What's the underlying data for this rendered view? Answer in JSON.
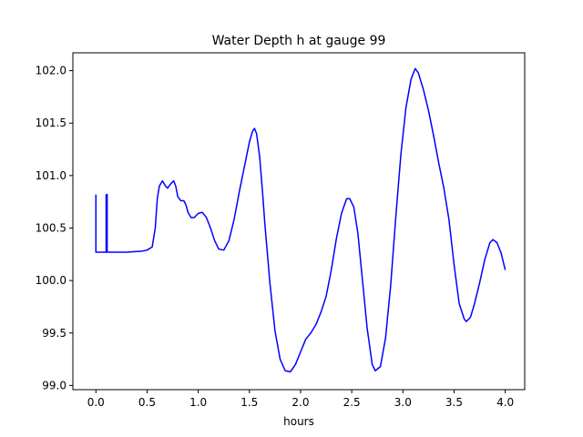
{
  "chart_data": {
    "type": "line",
    "title": "Water Depth h at gauge 99",
    "xlabel": "hours",
    "ylabel": "",
    "xlim": [
      -0.225,
      4.19
    ],
    "ylim": [
      98.96,
      102.17
    ],
    "grid": false,
    "legend": "none",
    "x_ticks": [
      0.0,
      0.5,
      1.0,
      1.5,
      2.0,
      2.5,
      3.0,
      3.5,
      4.0
    ],
    "x_tick_labels": [
      "0.0",
      "0.5",
      "1.0",
      "1.5",
      "2.0",
      "2.5",
      "3.0",
      "3.5",
      "4.0"
    ],
    "y_ticks": [
      99.0,
      99.5,
      100.0,
      100.5,
      101.0,
      101.5,
      102.0
    ],
    "y_tick_labels": [
      "99.0",
      "99.5",
      "100.0",
      "100.5",
      "101.0",
      "101.5",
      "102.0"
    ],
    "series": [
      {
        "color": "#0000ff",
        "x": [
          0.0,
          0.0,
          0.0,
          0.005,
          0.1,
          0.1,
          0.1,
          0.11,
          0.11,
          0.11,
          0.12,
          0.3,
          0.45,
          0.5,
          0.55,
          0.58,
          0.6,
          0.62,
          0.65,
          0.68,
          0.7,
          0.73,
          0.76,
          0.78,
          0.8,
          0.83,
          0.86,
          0.88,
          0.9,
          0.93,
          0.96,
          1.0,
          1.04,
          1.08,
          1.12,
          1.16,
          1.2,
          1.25,
          1.3,
          1.35,
          1.4,
          1.45,
          1.5,
          1.53,
          1.55,
          1.57,
          1.6,
          1.63,
          1.65,
          1.7,
          1.75,
          1.8,
          1.85,
          1.9,
          1.95,
          2.0,
          2.05,
          2.1,
          2.15,
          2.2,
          2.25,
          2.3,
          2.35,
          2.4,
          2.45,
          2.48,
          2.52,
          2.56,
          2.6,
          2.65,
          2.7,
          2.73,
          2.78,
          2.83,
          2.88,
          2.93,
          2.98,
          3.03,
          3.08,
          3.12,
          3.15,
          3.2,
          3.25,
          3.3,
          3.35,
          3.4,
          3.45,
          3.5,
          3.55,
          3.6,
          3.62,
          3.66,
          3.7,
          3.75,
          3.8,
          3.85,
          3.88,
          3.92,
          3.96,
          4.0
        ],
        "y": [
          100.82,
          100.27,
          100.27,
          100.27,
          100.27,
          100.82,
          100.27,
          100.27,
          100.82,
          100.27,
          100.27,
          100.27,
          100.28,
          100.29,
          100.32,
          100.5,
          100.78,
          100.9,
          100.95,
          100.9,
          100.88,
          100.92,
          100.95,
          100.9,
          100.8,
          100.76,
          100.76,
          100.72,
          100.65,
          100.6,
          100.6,
          100.64,
          100.65,
          100.6,
          100.5,
          100.38,
          100.3,
          100.29,
          100.38,
          100.58,
          100.84,
          101.08,
          101.32,
          101.42,
          101.45,
          101.4,
          101.18,
          100.82,
          100.55,
          99.98,
          99.52,
          99.25,
          99.14,
          99.13,
          99.2,
          99.32,
          99.44,
          99.5,
          99.58,
          99.7,
          99.85,
          100.1,
          100.4,
          100.64,
          100.78,
          100.78,
          100.7,
          100.45,
          100.05,
          99.55,
          99.2,
          99.14,
          99.18,
          99.45,
          99.95,
          100.6,
          101.2,
          101.65,
          101.92,
          102.02,
          101.98,
          101.82,
          101.62,
          101.38,
          101.12,
          100.88,
          100.58,
          100.15,
          99.78,
          99.63,
          99.61,
          99.65,
          99.78,
          99.98,
          100.2,
          100.36,
          100.39,
          100.36,
          100.26,
          100.1
        ]
      }
    ]
  }
}
